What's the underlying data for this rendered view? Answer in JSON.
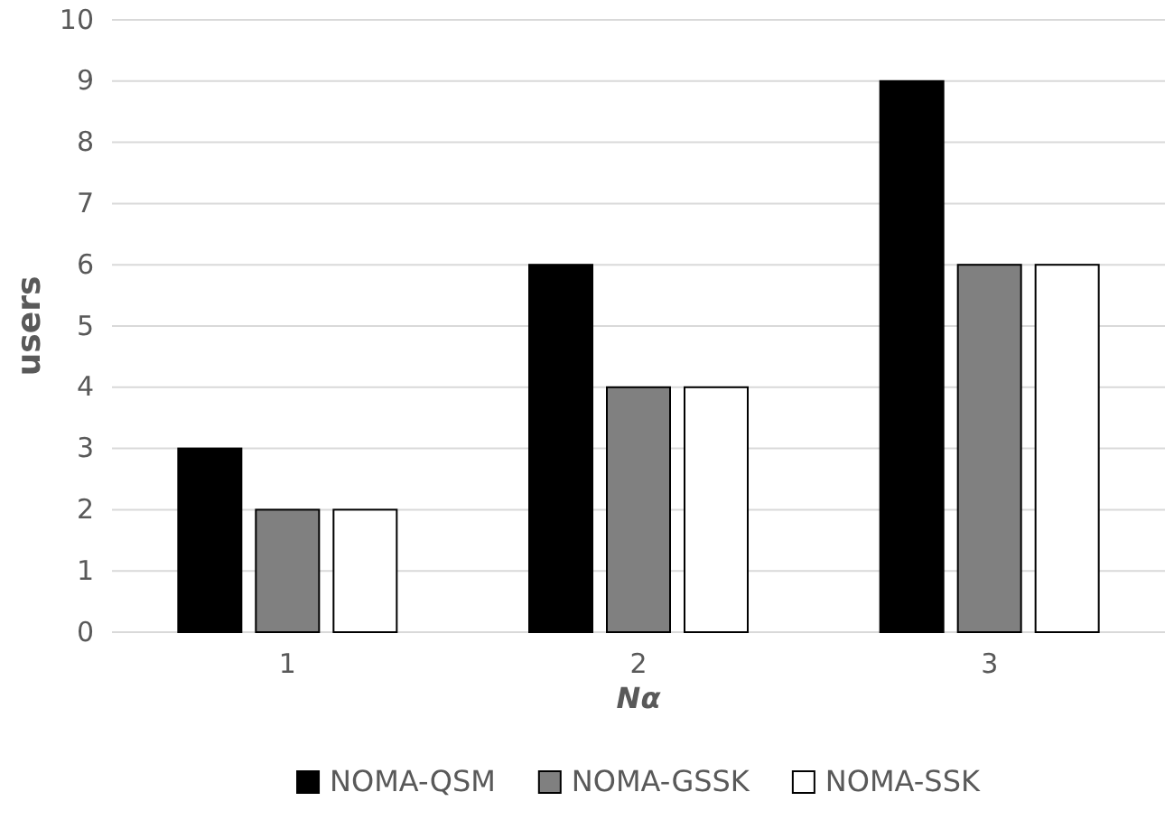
{
  "chart_data": {
    "type": "bar",
    "xlabel": "Nα",
    "ylabel": "users",
    "categories": [
      "1",
      "2",
      "3"
    ],
    "series": [
      {
        "name": "NOMA-QSM",
        "color": "#000000",
        "values": [
          3,
          6,
          9
        ]
      },
      {
        "name": "NOMA-GSSK",
        "color": "#808080",
        "values": [
          2,
          4,
          6
        ]
      },
      {
        "name": "NOMA-SSK",
        "color": "#ffffff",
        "values": [
          2,
          4,
          6
        ]
      }
    ],
    "ylim": [
      0,
      10
    ],
    "yticks": [
      0,
      1,
      2,
      3,
      4,
      5,
      6,
      7,
      8,
      9,
      10
    ],
    "grid": "y",
    "legend": "bottom"
  }
}
